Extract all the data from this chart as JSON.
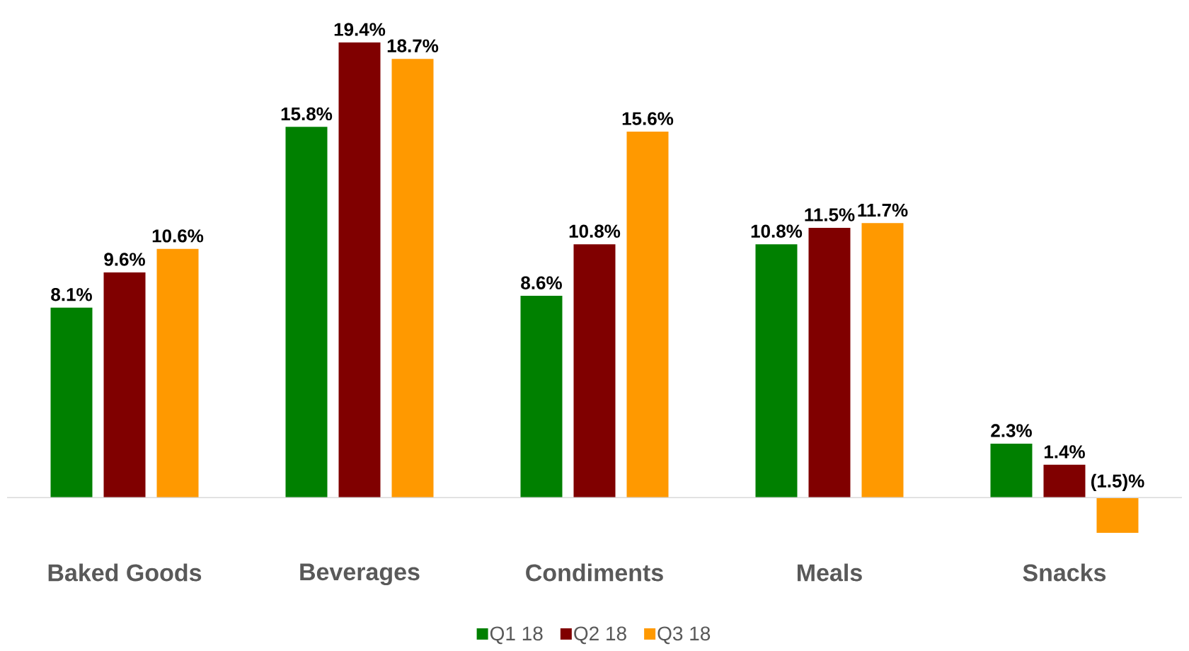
{
  "chart_data": {
    "type": "bar",
    "categories": [
      "Baked Goods",
      "Beverages",
      "Condiments",
      "Meals",
      "Snacks"
    ],
    "series": [
      {
        "name": "Q1 18",
        "color": "#008000",
        "values": [
          8.1,
          15.8,
          8.6,
          10.8,
          2.3
        ],
        "value_labels": [
          "8.1%",
          "15.8%",
          "8.6%",
          "10.8%",
          "2.3%"
        ]
      },
      {
        "name": "Q2 18",
        "color": "#800000",
        "values": [
          9.6,
          19.4,
          10.8,
          11.5,
          1.4
        ],
        "value_labels": [
          "9.6%",
          "19.4%",
          "10.8%",
          "11.5%",
          "1.4%"
        ]
      },
      {
        "name": "Q3 18",
        "color": "#ff9900",
        "values": [
          10.6,
          18.7,
          15.6,
          11.7,
          -1.5
        ],
        "value_labels": [
          "10.6%",
          "18.7%",
          "15.6%",
          "11.7%",
          "(1.5)%"
        ]
      }
    ],
    "legend": "bottom"
  }
}
